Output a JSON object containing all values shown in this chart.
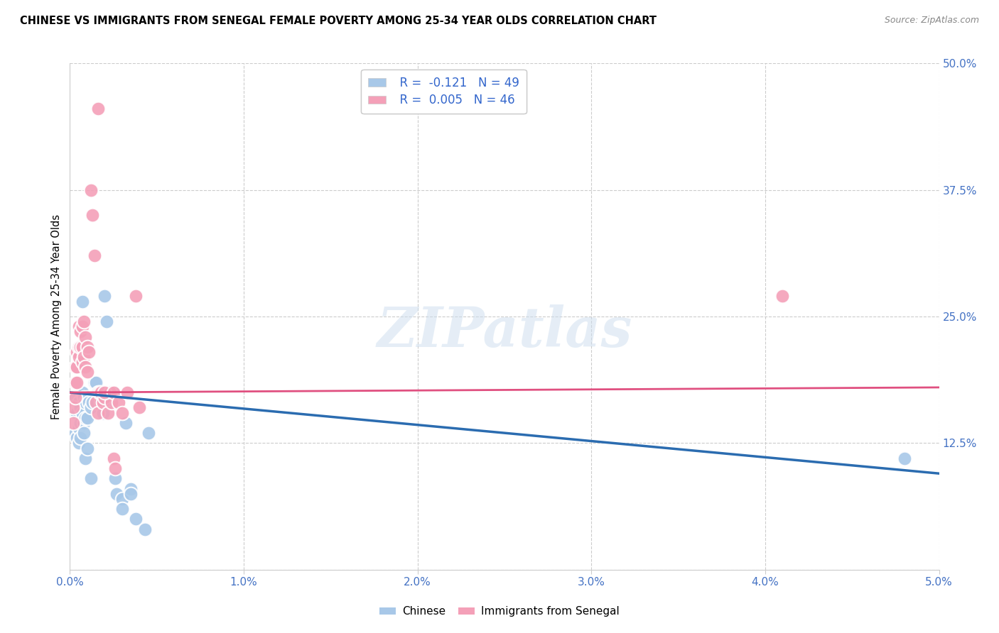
{
  "title": "CHINESE VS IMMIGRANTS FROM SENEGAL FEMALE POVERTY AMONG 25-34 YEAR OLDS CORRELATION CHART",
  "source": "Source: ZipAtlas.com",
  "ylabel": "Female Poverty Among 25-34 Year Olds",
  "xlim": [
    0.0,
    0.05
  ],
  "ylim": [
    0.0,
    0.5
  ],
  "xticks": [
    0.0,
    0.01,
    0.02,
    0.03,
    0.04,
    0.05
  ],
  "yticks_right": [
    0.0,
    0.125,
    0.25,
    0.375,
    0.5
  ],
  "ytick_labels_right": [
    "",
    "12.5%",
    "25.0%",
    "37.5%",
    "50.0%"
  ],
  "xtick_labels": [
    "0.0%",
    "1.0%",
    "2.0%",
    "3.0%",
    "4.0%",
    "5.0%"
  ],
  "chinese_color": "#a8c8e8",
  "senegal_color": "#f4a0b8",
  "chinese_line_color": "#2b6cb0",
  "senegal_line_color": "#e05080",
  "chinese_points": [
    [
      0.0002,
      0.17
    ],
    [
      0.0003,
      0.155
    ],
    [
      0.0003,
      0.135
    ],
    [
      0.0004,
      0.155
    ],
    [
      0.0004,
      0.13
    ],
    [
      0.0005,
      0.165
    ],
    [
      0.0005,
      0.14
    ],
    [
      0.0005,
      0.125
    ],
    [
      0.0006,
      0.16
    ],
    [
      0.0006,
      0.145
    ],
    [
      0.0006,
      0.13
    ],
    [
      0.0007,
      0.265
    ],
    [
      0.0007,
      0.175
    ],
    [
      0.0007,
      0.155
    ],
    [
      0.0008,
      0.17
    ],
    [
      0.0008,
      0.145
    ],
    [
      0.0008,
      0.135
    ],
    [
      0.0009,
      0.165
    ],
    [
      0.0009,
      0.15
    ],
    [
      0.0009,
      0.11
    ],
    [
      0.001,
      0.17
    ],
    [
      0.001,
      0.15
    ],
    [
      0.001,
      0.12
    ],
    [
      0.0011,
      0.165
    ],
    [
      0.0012,
      0.16
    ],
    [
      0.0012,
      0.09
    ],
    [
      0.0013,
      0.165
    ],
    [
      0.0014,
      0.185
    ],
    [
      0.0015,
      0.185
    ],
    [
      0.0016,
      0.175
    ],
    [
      0.0018,
      0.165
    ],
    [
      0.0019,
      0.155
    ],
    [
      0.002,
      0.165
    ],
    [
      0.0022,
      0.17
    ],
    [
      0.0022,
      0.165
    ],
    [
      0.0025,
      0.175
    ],
    [
      0.0026,
      0.09
    ],
    [
      0.0027,
      0.075
    ],
    [
      0.003,
      0.07
    ],
    [
      0.003,
      0.06
    ],
    [
      0.0035,
      0.08
    ],
    [
      0.0035,
      0.075
    ],
    [
      0.002,
      0.27
    ],
    [
      0.0021,
      0.245
    ],
    [
      0.0032,
      0.145
    ],
    [
      0.0038,
      0.05
    ],
    [
      0.0043,
      0.04
    ],
    [
      0.0045,
      0.135
    ],
    [
      0.048,
      0.11
    ]
  ],
  "senegal_points": [
    [
      0.0002,
      0.16
    ],
    [
      0.0002,
      0.145
    ],
    [
      0.0003,
      0.2
    ],
    [
      0.0003,
      0.185
    ],
    [
      0.0003,
      0.17
    ],
    [
      0.0004,
      0.215
    ],
    [
      0.0004,
      0.2
    ],
    [
      0.0004,
      0.185
    ],
    [
      0.0005,
      0.24
    ],
    [
      0.0005,
      0.22
    ],
    [
      0.0005,
      0.21
    ],
    [
      0.0006,
      0.235
    ],
    [
      0.0006,
      0.22
    ],
    [
      0.0007,
      0.24
    ],
    [
      0.0007,
      0.22
    ],
    [
      0.0007,
      0.205
    ],
    [
      0.0008,
      0.245
    ],
    [
      0.0008,
      0.21
    ],
    [
      0.0009,
      0.23
    ],
    [
      0.0009,
      0.2
    ],
    [
      0.001,
      0.22
    ],
    [
      0.001,
      0.195
    ],
    [
      0.0011,
      0.215
    ],
    [
      0.0012,
      0.375
    ],
    [
      0.0013,
      0.35
    ],
    [
      0.0014,
      0.31
    ],
    [
      0.0015,
      0.165
    ],
    [
      0.0016,
      0.155
    ],
    [
      0.0017,
      0.175
    ],
    [
      0.0018,
      0.175
    ],
    [
      0.0019,
      0.165
    ],
    [
      0.002,
      0.17
    ],
    [
      0.0022,
      0.155
    ],
    [
      0.0023,
      0.175
    ],
    [
      0.0024,
      0.165
    ],
    [
      0.0016,
      0.455
    ],
    [
      0.002,
      0.175
    ],
    [
      0.0025,
      0.175
    ],
    [
      0.0025,
      0.11
    ],
    [
      0.0026,
      0.1
    ],
    [
      0.0028,
      0.165
    ],
    [
      0.003,
      0.155
    ],
    [
      0.0033,
      0.175
    ],
    [
      0.0038,
      0.27
    ],
    [
      0.004,
      0.16
    ],
    [
      0.041,
      0.27
    ]
  ]
}
